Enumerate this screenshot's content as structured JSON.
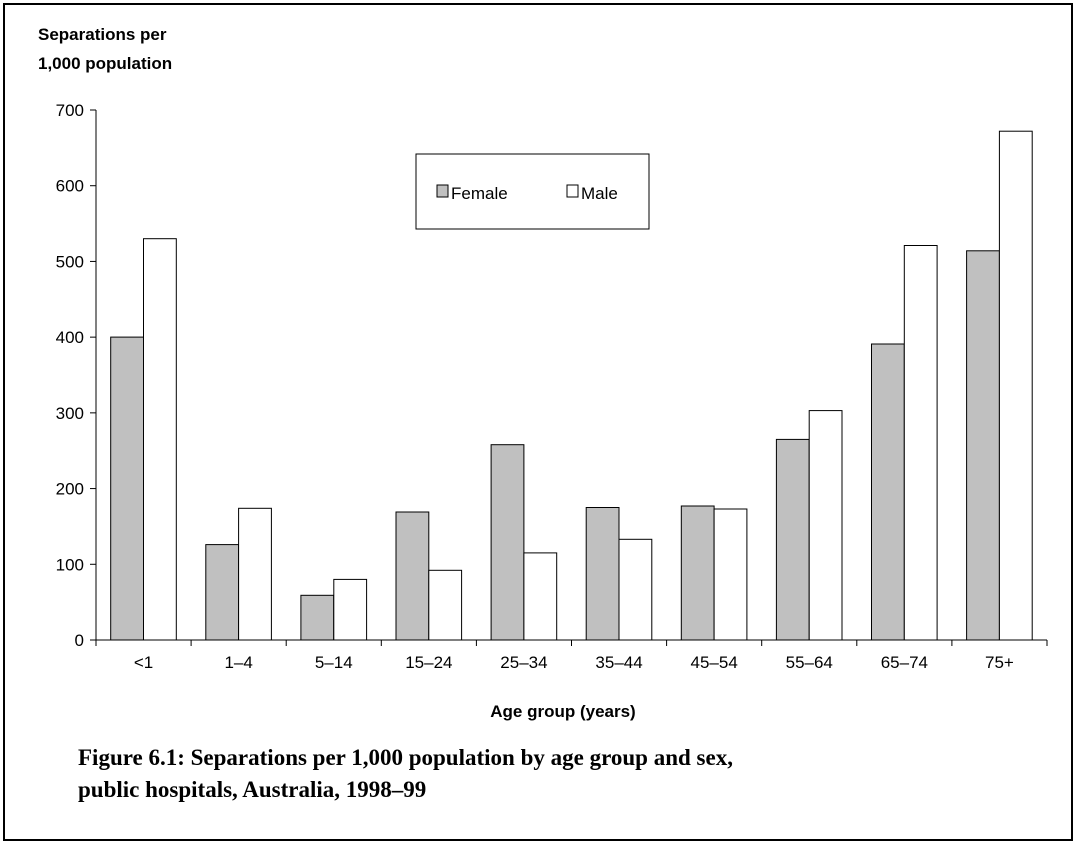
{
  "colors": {
    "female": "#c0c0c0",
    "male": "#ffffff",
    "stroke": "#000000"
  },
  "chart_data": {
    "type": "bar",
    "ylabel_lines": [
      "Separations per",
      "1,000 population"
    ],
    "xlabel": "Age group (years)",
    "categories": [
      "<1",
      "1–4",
      "5–14",
      "15–24",
      "25–34",
      "35–44",
      "45–54",
      "55–64",
      "65–74",
      "75+"
    ],
    "series": [
      {
        "name": "Female",
        "values": [
          400,
          126,
          59,
          169,
          258,
          175,
          177,
          265,
          391,
          514
        ]
      },
      {
        "name": "Male",
        "values": [
          530,
          174,
          80,
          92,
          115,
          133,
          173,
          303,
          521,
          672
        ]
      }
    ],
    "ylim": [
      0,
      700
    ],
    "yticks": [
      0,
      100,
      200,
      300,
      400,
      500,
      600,
      700
    ],
    "legend_position": "top-center",
    "grid": false
  },
  "caption": {
    "line1": "Figure 6.1: Separations per 1,000 population by age group and sex,",
    "line2": "public hospitals, Australia, 1998–99"
  }
}
